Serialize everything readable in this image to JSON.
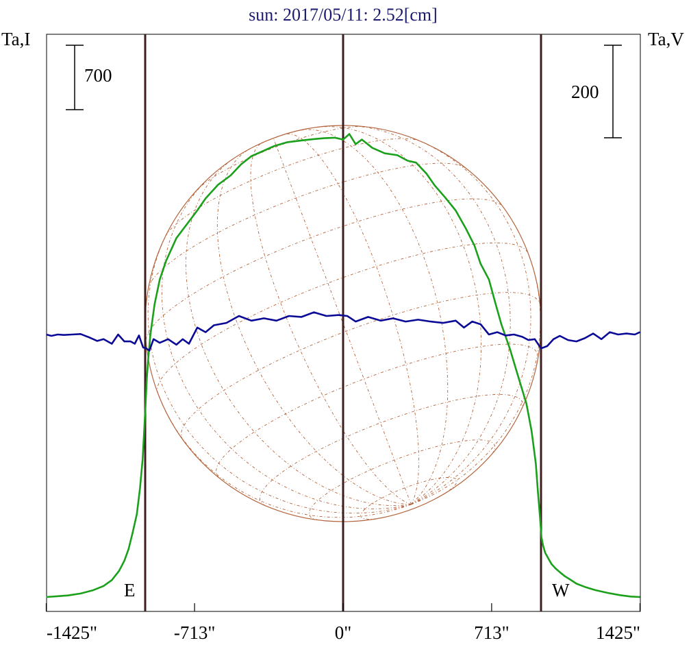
{
  "title": "sun: 2017/05/11: 2.52[cm]",
  "left_axis_label": "Ta,I",
  "right_axis_label": "Ta,V",
  "scale_left_label": "700",
  "scale_right_label": "200",
  "east_label": "E",
  "west_label": "W",
  "colors": {
    "title": "#1a1a6e",
    "stokes_i": "#1aa01a",
    "stokes_v": "#0a0a96",
    "limb_lines": "#3c1e1e",
    "disk": "#b4643c"
  },
  "chart_data": {
    "type": "line",
    "title": "sun: 2017/05/11: 2.52[cm]",
    "x_ticks": [
      {
        "value": -1425,
        "label": "-1425\""
      },
      {
        "value": -713,
        "label": "-713\""
      },
      {
        "value": 0,
        "label": "0\""
      },
      {
        "value": 713,
        "label": "713\""
      },
      {
        "value": 1425,
        "label": "1425\""
      }
    ],
    "xlim": [
      -1425,
      1425
    ],
    "vertical_lines_arcsec": [
      -950,
      0,
      950
    ],
    "solar_radius_arcsec": 950,
    "scale_bars": [
      {
        "axis": "left",
        "label": "700",
        "value": 700
      },
      {
        "axis": "right",
        "label": "200",
        "value": 200
      }
    ],
    "series": [
      {
        "key": "stokes_i",
        "color": "#1aa01a",
        "x": [
          -1425,
          -1380,
          -1320,
          -1260,
          -1200,
          -1150,
          -1110,
          -1075,
          -1050,
          -1030,
          -1010,
          -990,
          -975,
          -962,
          -955,
          -948,
          -942,
          -935,
          -925,
          -905,
          -880,
          -850,
          -800,
          -740,
          -700,
          -660,
          -600,
          -540,
          -490,
          -440,
          -390,
          -330,
          -270,
          -200,
          -140,
          -90,
          -40,
          0,
          30,
          60,
          90,
          140,
          200,
          260,
          310,
          350,
          400,
          440,
          490,
          540,
          590,
          630,
          660,
          700,
          730,
          760,
          800,
          840,
          880,
          905,
          925,
          935,
          945,
          952,
          960,
          970,
          985,
          1000,
          1020,
          1040,
          1065,
          1090,
          1120,
          1160,
          1210,
          1270,
          1330,
          1380,
          1425
        ],
        "y": [
          0,
          7,
          17,
          38,
          74,
          120,
          184,
          285,
          395,
          520,
          700,
          900,
          1180,
          1500,
          1800,
          2100,
          2380,
          2600,
          2850,
          3180,
          3450,
          3650,
          3900,
          4080,
          4200,
          4330,
          4480,
          4580,
          4700,
          4790,
          4840,
          4900,
          4940,
          4960,
          4975,
          4985,
          4990,
          4970,
          5030,
          4920,
          4970,
          4880,
          4820,
          4800,
          4740,
          4720,
          4600,
          4470,
          4340,
          4200,
          4000,
          3820,
          3620,
          3450,
          3200,
          2960,
          2700,
          2400,
          2100,
          1800,
          1450,
          1150,
          870,
          650,
          560,
          480,
          420,
          360,
          310,
          270,
          225,
          190,
          145,
          110,
          75,
          45,
          20,
          5,
          0
        ]
      },
      {
        "key": "stokes_v",
        "color": "#0a0a96",
        "x": [
          -1425,
          -1400,
          -1370,
          -1340,
          -1300,
          -1260,
          -1220,
          -1180,
          -1150,
          -1110,
          -1080,
          -1050,
          -1020,
          -1000,
          -980,
          -960,
          -945,
          -930,
          -910,
          -880,
          -840,
          -800,
          -770,
          -740,
          -700,
          -660,
          -620,
          -560,
          -500,
          -440,
          -380,
          -320,
          -260,
          -200,
          -140,
          -80,
          -20,
          20,
          60,
          120,
          180,
          240,
          300,
          360,
          420,
          480,
          540,
          580,
          620,
          660,
          700,
          740,
          780,
          820,
          860,
          890,
          920,
          950,
          980,
          1010,
          1040,
          1080,
          1120,
          1160,
          1200,
          1240,
          1280,
          1320,
          1360,
          1400,
          1425
        ],
        "y": [
          0,
          -3,
          0,
          -1,
          0,
          1,
          -6,
          -14,
          -10,
          -20,
          0,
          -15,
          -15,
          -20,
          -2,
          -28,
          -30,
          -35,
          -10,
          -18,
          -10,
          -22,
          -10,
          -20,
          15,
          5,
          20,
          25,
          40,
          30,
          35,
          30,
          40,
          38,
          48,
          40,
          42,
          40,
          28,
          38,
          30,
          35,
          28,
          32,
          28,
          25,
          30,
          15,
          28,
          22,
          0,
          5,
          -2,
          0,
          -5,
          -12,
          -10,
          -30,
          -25,
          -10,
          -3,
          -12,
          -15,
          -8,
          2,
          -10,
          5,
          0,
          2,
          0,
          5
        ]
      }
    ]
  }
}
